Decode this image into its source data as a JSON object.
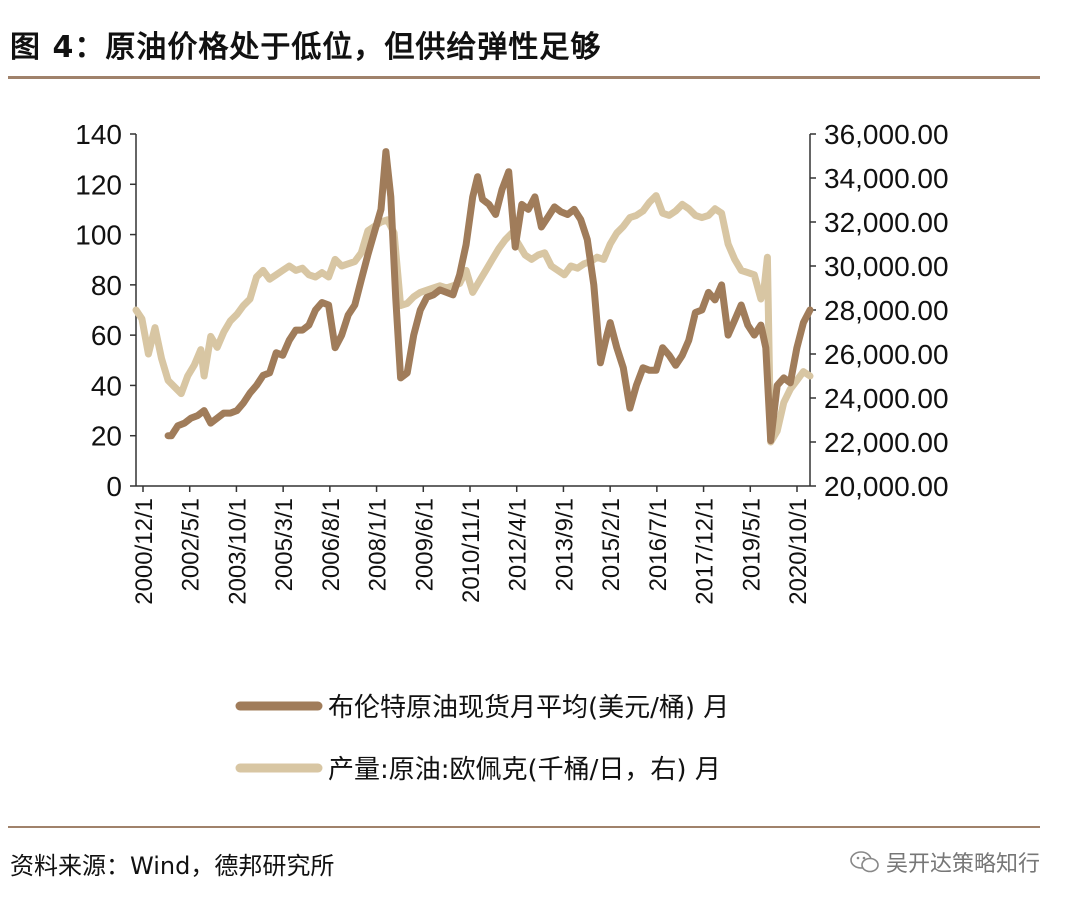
{
  "header": {
    "title": "图 4：原油价格处于低位，但供给弹性足够"
  },
  "footer": {
    "source": "资料来源：Wind，德邦研究所",
    "watermark": "吴开达策略知行",
    "watermark_icon": "wechat-icon"
  },
  "colors": {
    "brent": "#a07c5a",
    "opec": "#d8c6a3",
    "rule": "#a0826b",
    "axis": "#333333"
  },
  "chart_data": {
    "type": "line",
    "title": "",
    "x_tick_labels": [
      "2000/12/1",
      "2002/5/1",
      "2003/10/1",
      "2005/3/1",
      "2006/8/1",
      "2008/1/1",
      "2009/6/1",
      "2010/11/1",
      "2012/4/1",
      "2013/9/1",
      "2015/2/1",
      "2016/7/1",
      "2017/12/1",
      "2019/5/1",
      "2020/10/1"
    ],
    "x_range": [
      2000.92,
      2021.5
    ],
    "y_left": {
      "min": 0,
      "max": 140,
      "ticks": [
        0,
        20,
        40,
        60,
        80,
        100,
        120,
        140
      ],
      "tick_labels": [
        "0",
        "20",
        "40",
        "60",
        "80",
        "100",
        "120",
        "140"
      ]
    },
    "y_right": {
      "min": 20000,
      "max": 36000,
      "ticks": [
        20000,
        22000,
        24000,
        26000,
        28000,
        30000,
        32000,
        34000,
        36000
      ],
      "tick_labels": [
        "20,000.00",
        "22,000.00",
        "24,000.00",
        "26,000.00",
        "28,000.00",
        "30,000.00",
        "32,000.00",
        "34,000.00",
        "36,000.00"
      ]
    },
    "series": [
      {
        "name": "布伦特原油现货月平均(美元/桶) 月",
        "axis": "left",
        "points": [
          [
            2001.9,
            20
          ],
          [
            2002.0,
            20
          ],
          [
            2002.2,
            24
          ],
          [
            2002.4,
            25
          ],
          [
            2002.6,
            27
          ],
          [
            2002.8,
            28
          ],
          [
            2003.0,
            30
          ],
          [
            2003.2,
            25
          ],
          [
            2003.4,
            27
          ],
          [
            2003.6,
            29
          ],
          [
            2003.8,
            29
          ],
          [
            2004.0,
            30
          ],
          [
            2004.2,
            33
          ],
          [
            2004.4,
            37
          ],
          [
            2004.6,
            40
          ],
          [
            2004.8,
            44
          ],
          [
            2005.0,
            45
          ],
          [
            2005.2,
            53
          ],
          [
            2005.4,
            52
          ],
          [
            2005.6,
            58
          ],
          [
            2005.8,
            62
          ],
          [
            2006.0,
            62
          ],
          [
            2006.2,
            64
          ],
          [
            2006.4,
            70
          ],
          [
            2006.6,
            73
          ],
          [
            2006.8,
            72
          ],
          [
            2007.0,
            55
          ],
          [
            2007.2,
            60
          ],
          [
            2007.4,
            68
          ],
          [
            2007.6,
            72
          ],
          [
            2007.8,
            82
          ],
          [
            2008.0,
            92
          ],
          [
            2008.2,
            101
          ],
          [
            2008.4,
            110
          ],
          [
            2008.55,
            133
          ],
          [
            2008.7,
            115
          ],
          [
            2008.85,
            75
          ],
          [
            2009.0,
            43
          ],
          [
            2009.2,
            45
          ],
          [
            2009.4,
            60
          ],
          [
            2009.6,
            70
          ],
          [
            2009.8,
            75
          ],
          [
            2010.0,
            76
          ],
          [
            2010.2,
            78
          ],
          [
            2010.4,
            77
          ],
          [
            2010.6,
            76
          ],
          [
            2010.8,
            84
          ],
          [
            2011.0,
            96
          ],
          [
            2011.2,
            115
          ],
          [
            2011.35,
            123
          ],
          [
            2011.5,
            114
          ],
          [
            2011.7,
            112
          ],
          [
            2011.9,
            108
          ],
          [
            2012.1,
            118
          ],
          [
            2012.3,
            125
          ],
          [
            2012.5,
            95
          ],
          [
            2012.7,
            112
          ],
          [
            2012.9,
            110
          ],
          [
            2013.1,
            115
          ],
          [
            2013.3,
            103
          ],
          [
            2013.5,
            107
          ],
          [
            2013.7,
            111
          ],
          [
            2013.9,
            109
          ],
          [
            2014.1,
            108
          ],
          [
            2014.3,
            110
          ],
          [
            2014.5,
            106
          ],
          [
            2014.7,
            98
          ],
          [
            2014.9,
            80
          ],
          [
            2015.1,
            49
          ],
          [
            2015.3,
            60
          ],
          [
            2015.4,
            65
          ],
          [
            2015.6,
            55
          ],
          [
            2015.8,
            47
          ],
          [
            2016.0,
            31
          ],
          [
            2016.2,
            40
          ],
          [
            2016.4,
            47
          ],
          [
            2016.6,
            46
          ],
          [
            2016.8,
            46
          ],
          [
            2017.0,
            55
          ],
          [
            2017.2,
            52
          ],
          [
            2017.4,
            48
          ],
          [
            2017.6,
            52
          ],
          [
            2017.8,
            58
          ],
          [
            2018.0,
            69
          ],
          [
            2018.2,
            70
          ],
          [
            2018.4,
            77
          ],
          [
            2018.6,
            74
          ],
          [
            2018.8,
            80
          ],
          [
            2019.0,
            60
          ],
          [
            2019.2,
            66
          ],
          [
            2019.4,
            72
          ],
          [
            2019.6,
            64
          ],
          [
            2019.8,
            60
          ],
          [
            2020.0,
            64
          ],
          [
            2020.15,
            55
          ],
          [
            2020.3,
            18
          ],
          [
            2020.5,
            40
          ],
          [
            2020.7,
            43
          ],
          [
            2020.9,
            41
          ],
          [
            2021.1,
            55
          ],
          [
            2021.3,
            65
          ],
          [
            2021.5,
            70
          ]
        ]
      },
      {
        "name": "产量:原油:欧佩克(千桶/日，右) 月",
        "axis": "right",
        "points": [
          [
            2000.92,
            28000
          ],
          [
            2001.1,
            27600
          ],
          [
            2001.3,
            26000
          ],
          [
            2001.5,
            27200
          ],
          [
            2001.7,
            25800
          ],
          [
            2001.9,
            24800
          ],
          [
            2002.1,
            24500
          ],
          [
            2002.3,
            24200
          ],
          [
            2002.5,
            25000
          ],
          [
            2002.7,
            25500
          ],
          [
            2002.9,
            26200
          ],
          [
            2003.0,
            25000
          ],
          [
            2003.2,
            26800
          ],
          [
            2003.4,
            26300
          ],
          [
            2003.6,
            27000
          ],
          [
            2003.8,
            27500
          ],
          [
            2004.0,
            27800
          ],
          [
            2004.2,
            28200
          ],
          [
            2004.4,
            28500
          ],
          [
            2004.6,
            29500
          ],
          [
            2004.8,
            29800
          ],
          [
            2005.0,
            29400
          ],
          [
            2005.2,
            29600
          ],
          [
            2005.4,
            29800
          ],
          [
            2005.6,
            30000
          ],
          [
            2005.8,
            29800
          ],
          [
            2006.0,
            29900
          ],
          [
            2006.2,
            29600
          ],
          [
            2006.4,
            29500
          ],
          [
            2006.6,
            29700
          ],
          [
            2006.8,
            29500
          ],
          [
            2007.0,
            30300
          ],
          [
            2007.2,
            30000
          ],
          [
            2007.4,
            30100
          ],
          [
            2007.6,
            30200
          ],
          [
            2007.8,
            30600
          ],
          [
            2008.0,
            31600
          ],
          [
            2008.2,
            31800
          ],
          [
            2008.4,
            32000
          ],
          [
            2008.6,
            32100
          ],
          [
            2008.8,
            31500
          ],
          [
            2009.0,
            28200
          ],
          [
            2009.2,
            28300
          ],
          [
            2009.4,
            28600
          ],
          [
            2009.6,
            28800
          ],
          [
            2009.8,
            28900
          ],
          [
            2010.0,
            29000
          ],
          [
            2010.2,
            29100
          ],
          [
            2010.4,
            29000
          ],
          [
            2010.6,
            29100
          ],
          [
            2010.8,
            29200
          ],
          [
            2011.0,
            29800
          ],
          [
            2011.2,
            28800
          ],
          [
            2011.4,
            29300
          ],
          [
            2011.6,
            29800
          ],
          [
            2011.8,
            30300
          ],
          [
            2012.0,
            30800
          ],
          [
            2012.2,
            31200
          ],
          [
            2012.4,
            31500
          ],
          [
            2012.6,
            31000
          ],
          [
            2012.8,
            30500
          ],
          [
            2013.0,
            30300
          ],
          [
            2013.2,
            30500
          ],
          [
            2013.4,
            30600
          ],
          [
            2013.6,
            30000
          ],
          [
            2013.8,
            29800
          ],
          [
            2014.0,
            29600
          ],
          [
            2014.2,
            30000
          ],
          [
            2014.4,
            29900
          ],
          [
            2014.6,
            30100
          ],
          [
            2014.8,
            30200
          ],
          [
            2015.0,
            30400
          ],
          [
            2015.2,
            30300
          ],
          [
            2015.4,
            31000
          ],
          [
            2015.6,
            31500
          ],
          [
            2015.8,
            31800
          ],
          [
            2016.0,
            32200
          ],
          [
            2016.2,
            32300
          ],
          [
            2016.4,
            32500
          ],
          [
            2016.6,
            32900
          ],
          [
            2016.8,
            33200
          ],
          [
            2017.0,
            32400
          ],
          [
            2017.2,
            32300
          ],
          [
            2017.4,
            32500
          ],
          [
            2017.6,
            32800
          ],
          [
            2017.8,
            32600
          ],
          [
            2018.0,
            32300
          ],
          [
            2018.2,
            32200
          ],
          [
            2018.4,
            32300
          ],
          [
            2018.6,
            32600
          ],
          [
            2018.8,
            32400
          ],
          [
            2019.0,
            31000
          ],
          [
            2019.2,
            30300
          ],
          [
            2019.4,
            29800
          ],
          [
            2019.6,
            29700
          ],
          [
            2019.8,
            29600
          ],
          [
            2020.0,
            28500
          ],
          [
            2020.1,
            29000
          ],
          [
            2020.2,
            30400
          ],
          [
            2020.3,
            22000
          ],
          [
            2020.5,
            22500
          ],
          [
            2020.7,
            23800
          ],
          [
            2020.9,
            24400
          ],
          [
            2021.1,
            24800
          ],
          [
            2021.3,
            25200
          ],
          [
            2021.5,
            25000
          ]
        ]
      }
    ],
    "legend": [
      "布伦特原油现货月平均(美元/桶) 月",
      "产量:原油:欧佩克(千桶/日，右) 月"
    ],
    "legend_position": "bottom"
  }
}
